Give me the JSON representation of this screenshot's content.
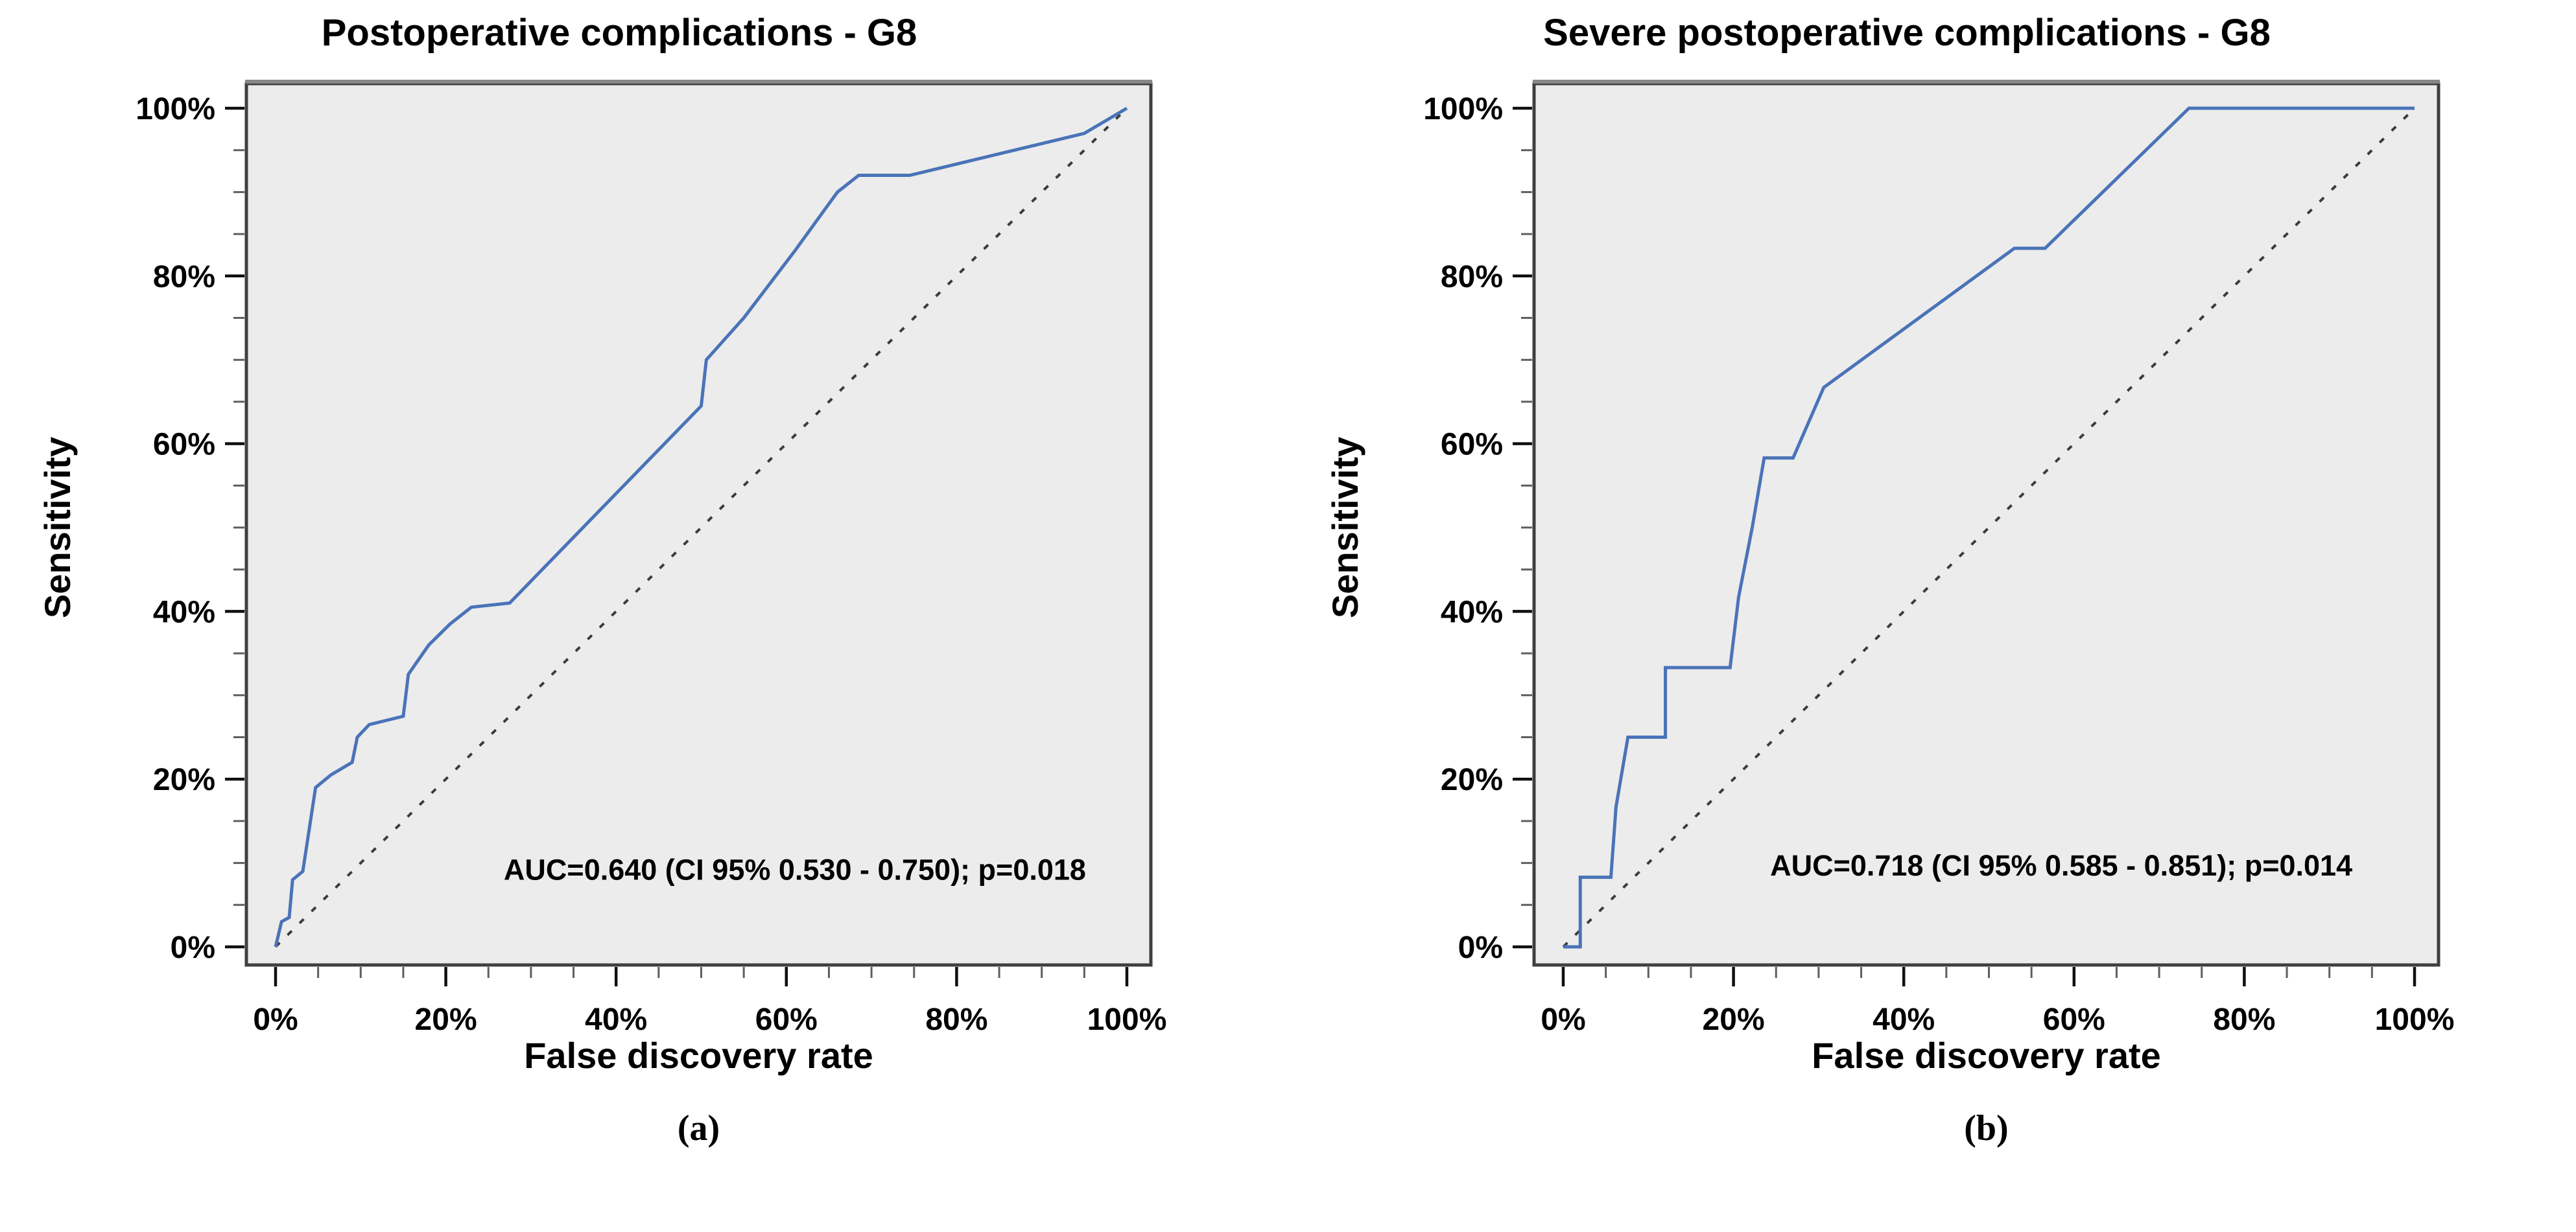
{
  "figure": {
    "background": "#ffffff",
    "caption_letters": [
      "(a)",
      "(b)"
    ]
  },
  "chart_data": [
    {
      "type": "line",
      "title": "Postoperative complications - G8",
      "xlabel": "False discovery rate",
      "ylabel": "Sensitivity",
      "caption": "(a)",
      "xlim": [
        0,
        100
      ],
      "ylim": [
        0,
        100
      ],
      "major_tick_step": 20,
      "minor_tick_step": 5,
      "x_tick_labels": [
        "0%",
        "20%",
        "40%",
        "60%",
        "80%",
        "100%"
      ],
      "y_tick_labels": [
        "0%",
        "20%",
        "40%",
        "60%",
        "80%",
        "100%"
      ],
      "grid": false,
      "legend": "none",
      "plot_bg": "#ececec",
      "border_color": "#3f3f3f",
      "auc": 0.64,
      "ci95": [
        0.53,
        0.75
      ],
      "p_value": 0.018,
      "annotation": {
        "text": "AUC=0.640 (CI 95% 0.530 - 0.750); p=0.018",
        "x": 61,
        "y": 8
      },
      "series": [
        {
          "name": "roc-curve",
          "color": "#4a73b8",
          "style": "solid",
          "width": 5,
          "points": [
            [
              0,
              0
            ],
            [
              0.7,
              3
            ],
            [
              1.6,
              3.5
            ],
            [
              2,
              8
            ],
            [
              3.2,
              9
            ],
            [
              4.7,
              19
            ],
            [
              6.5,
              20.5
            ],
            [
              9,
              22
            ],
            [
              9.6,
              25
            ],
            [
              11,
              26.5
            ],
            [
              15,
              27.5
            ],
            [
              15.6,
              32.5
            ],
            [
              18,
              36
            ],
            [
              20.5,
              38.5
            ],
            [
              23,
              40.5
            ],
            [
              27.5,
              41
            ],
            [
              50,
              64.5
            ],
            [
              50.6,
              70
            ],
            [
              55,
              75
            ],
            [
              61,
              83
            ],
            [
              66,
              90
            ],
            [
              68.5,
              92
            ],
            [
              74.5,
              92
            ],
            [
              95,
              97
            ],
            [
              100,
              100
            ]
          ]
        },
        {
          "name": "reference-diagonal",
          "color": "#3c3c3c",
          "style": "dashed",
          "width": 4,
          "points": [
            [
              0,
              0
            ],
            [
              100,
              100
            ]
          ]
        }
      ]
    },
    {
      "type": "line",
      "title": "Severe postoperative complications - G8",
      "xlabel": "False discovery rate",
      "ylabel": "Sensitivity",
      "caption": "(b)",
      "xlim": [
        0,
        100
      ],
      "ylim": [
        0,
        100
      ],
      "major_tick_step": 20,
      "minor_tick_step": 5,
      "x_tick_labels": [
        "0%",
        "20%",
        "40%",
        "60%",
        "80%",
        "100%"
      ],
      "y_tick_labels": [
        "0%",
        "20%",
        "40%",
        "60%",
        "80%",
        "100%"
      ],
      "grid": false,
      "legend": "none",
      "plot_bg": "#ececec",
      "border_color": "#3f3f3f",
      "auc": 0.718,
      "ci95": [
        0.585,
        0.851
      ],
      "p_value": 0.014,
      "annotation": {
        "text": "AUC=0.718 (CI 95% 0.585 - 0.851); p=0.014",
        "x": 58.5,
        "y": 8.5
      },
      "series": [
        {
          "name": "roc-curve",
          "color": "#4a73b8",
          "style": "solid",
          "width": 5,
          "points": [
            [
              0,
              0
            ],
            [
              2,
              0
            ],
            [
              2,
              8.3
            ],
            [
              5.6,
              8.3
            ],
            [
              6.2,
              16.7
            ],
            [
              7.6,
              25
            ],
            [
              12,
              25
            ],
            [
              12,
              33.3
            ],
            [
              19.6,
              33.3
            ],
            [
              20.6,
              41.7
            ],
            [
              22.2,
              50
            ],
            [
              23.6,
              58.3
            ],
            [
              27,
              58.3
            ],
            [
              30.6,
              66.7
            ],
            [
              53,
              83.3
            ],
            [
              56.6,
              83.3
            ],
            [
              73.5,
              100
            ],
            [
              100,
              100
            ]
          ]
        },
        {
          "name": "reference-diagonal",
          "color": "#3c3c3c",
          "style": "dashed",
          "width": 4,
          "points": [
            [
              0,
              0
            ],
            [
              100,
              100
            ]
          ]
        }
      ]
    }
  ]
}
